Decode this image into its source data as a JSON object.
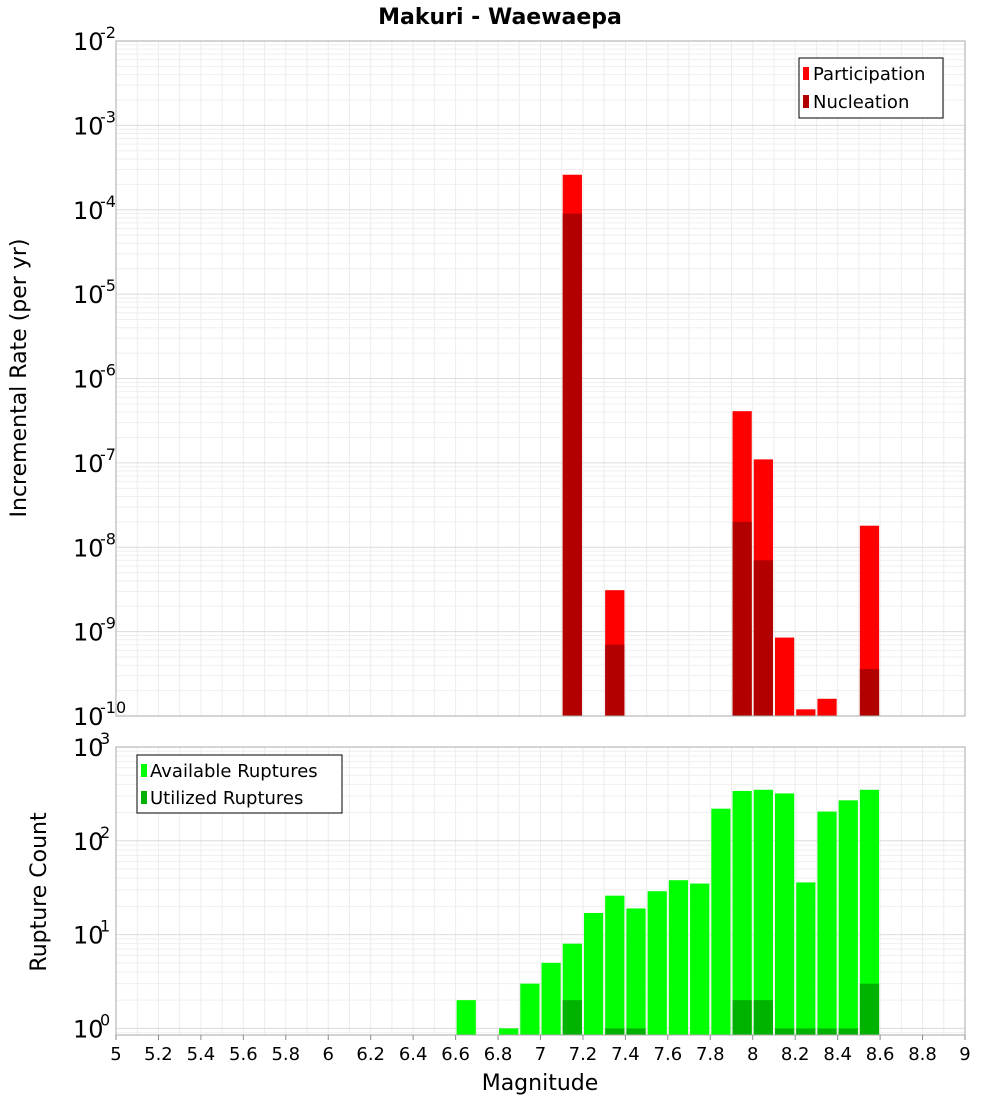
{
  "chart_data": [
    {
      "type": "bar",
      "title": "Makuri - Waewaepa",
      "xlabel": "",
      "ylabel": "Incremental Rate (per yr)",
      "yscale": "log",
      "ylim": [
        1e-10,
        0.01
      ],
      "xlim": [
        5,
        9
      ],
      "grid": true,
      "legend_position": "top-right",
      "bar_width": 0.1,
      "ytick_labels": [
        {
          "base": "10",
          "exp": "-10",
          "value": 1e-10
        },
        {
          "base": "10",
          "exp": "-9",
          "value": 1e-09
        },
        {
          "base": "10",
          "exp": "-8",
          "value": 1e-08
        },
        {
          "base": "10",
          "exp": "-7",
          "value": 1e-07
        },
        {
          "base": "10",
          "exp": "-6",
          "value": 1e-06
        },
        {
          "base": "10",
          "exp": "-5",
          "value": 1e-05
        },
        {
          "base": "10",
          "exp": "-4",
          "value": 0.0001
        },
        {
          "base": "10",
          "exp": "-3",
          "value": 0.001
        },
        {
          "base": "10",
          "exp": "-2",
          "value": 0.01
        }
      ],
      "series": [
        {
          "name": "Participation",
          "color": "#ff0000",
          "x": [
            7.15,
            7.35,
            7.95,
            8.05,
            8.15,
            8.25,
            8.35,
            8.55
          ],
          "values": [
            0.00026,
            3.1e-09,
            4.1e-07,
            1.1e-07,
            8.5e-10,
            1.2e-10,
            1.6e-10,
            1.8e-08
          ]
        },
        {
          "name": "Nucleation",
          "color": "#b20000",
          "x": [
            7.15,
            7.35,
            7.95,
            8.05,
            8.55
          ],
          "values": [
            9e-05,
            7e-10,
            2e-08,
            7e-09,
            3.6e-10
          ]
        }
      ]
    },
    {
      "type": "bar",
      "title": "",
      "xlabel": "Magnitude",
      "ylabel": "Rupture Count",
      "yscale": "log",
      "ylim": [
        0.85,
        1000
      ],
      "xlim": [
        5,
        9
      ],
      "grid": true,
      "legend_position": "top-left",
      "bar_width": 0.1,
      "xticks": [
        5,
        5.2,
        5.4,
        5.6,
        5.8,
        6,
        6.2,
        6.4,
        6.6,
        6.8,
        7,
        7.2,
        7.4,
        7.6,
        7.8,
        8,
        8.2,
        8.4,
        8.6,
        8.8,
        9
      ],
      "xtick_labels": [
        "5",
        "5.2",
        "5.4",
        "5.6",
        "5.8",
        "6",
        "6.2",
        "6.4",
        "6.6",
        "6.8",
        "7",
        "7.2",
        "7.4",
        "7.6",
        "7.8",
        "8",
        "8.2",
        "8.4",
        "8.6",
        "8.8",
        "9"
      ],
      "ytick_labels": [
        {
          "base": "10",
          "exp": "0",
          "value": 1
        },
        {
          "base": "10",
          "exp": "1",
          "value": 10
        },
        {
          "base": "10",
          "exp": "2",
          "value": 100
        },
        {
          "base": "10",
          "exp": "3",
          "value": 1000
        }
      ],
      "series": [
        {
          "name": "Available Ruptures",
          "color": "#00ff00",
          "x": [
            6.65,
            6.85,
            6.95,
            7.05,
            7.15,
            7.25,
            7.35,
            7.45,
            7.55,
            7.65,
            7.75,
            7.85,
            7.95,
            8.05,
            8.15,
            8.25,
            8.35,
            8.45,
            8.55
          ],
          "values": [
            2,
            1,
            3,
            5,
            8,
            17,
            26,
            19,
            29,
            38,
            35,
            220,
            340,
            350,
            320,
            36,
            205,
            270,
            350
          ]
        },
        {
          "name": "Utilized Ruptures",
          "color": "#00b200",
          "x": [
            7.15,
            7.35,
            7.45,
            7.95,
            8.05,
            8.15,
            8.25,
            8.35,
            8.45,
            8.55
          ],
          "values": [
            2,
            1,
            1,
            2,
            2,
            1,
            1,
            1,
            1,
            3
          ]
        }
      ]
    }
  ]
}
